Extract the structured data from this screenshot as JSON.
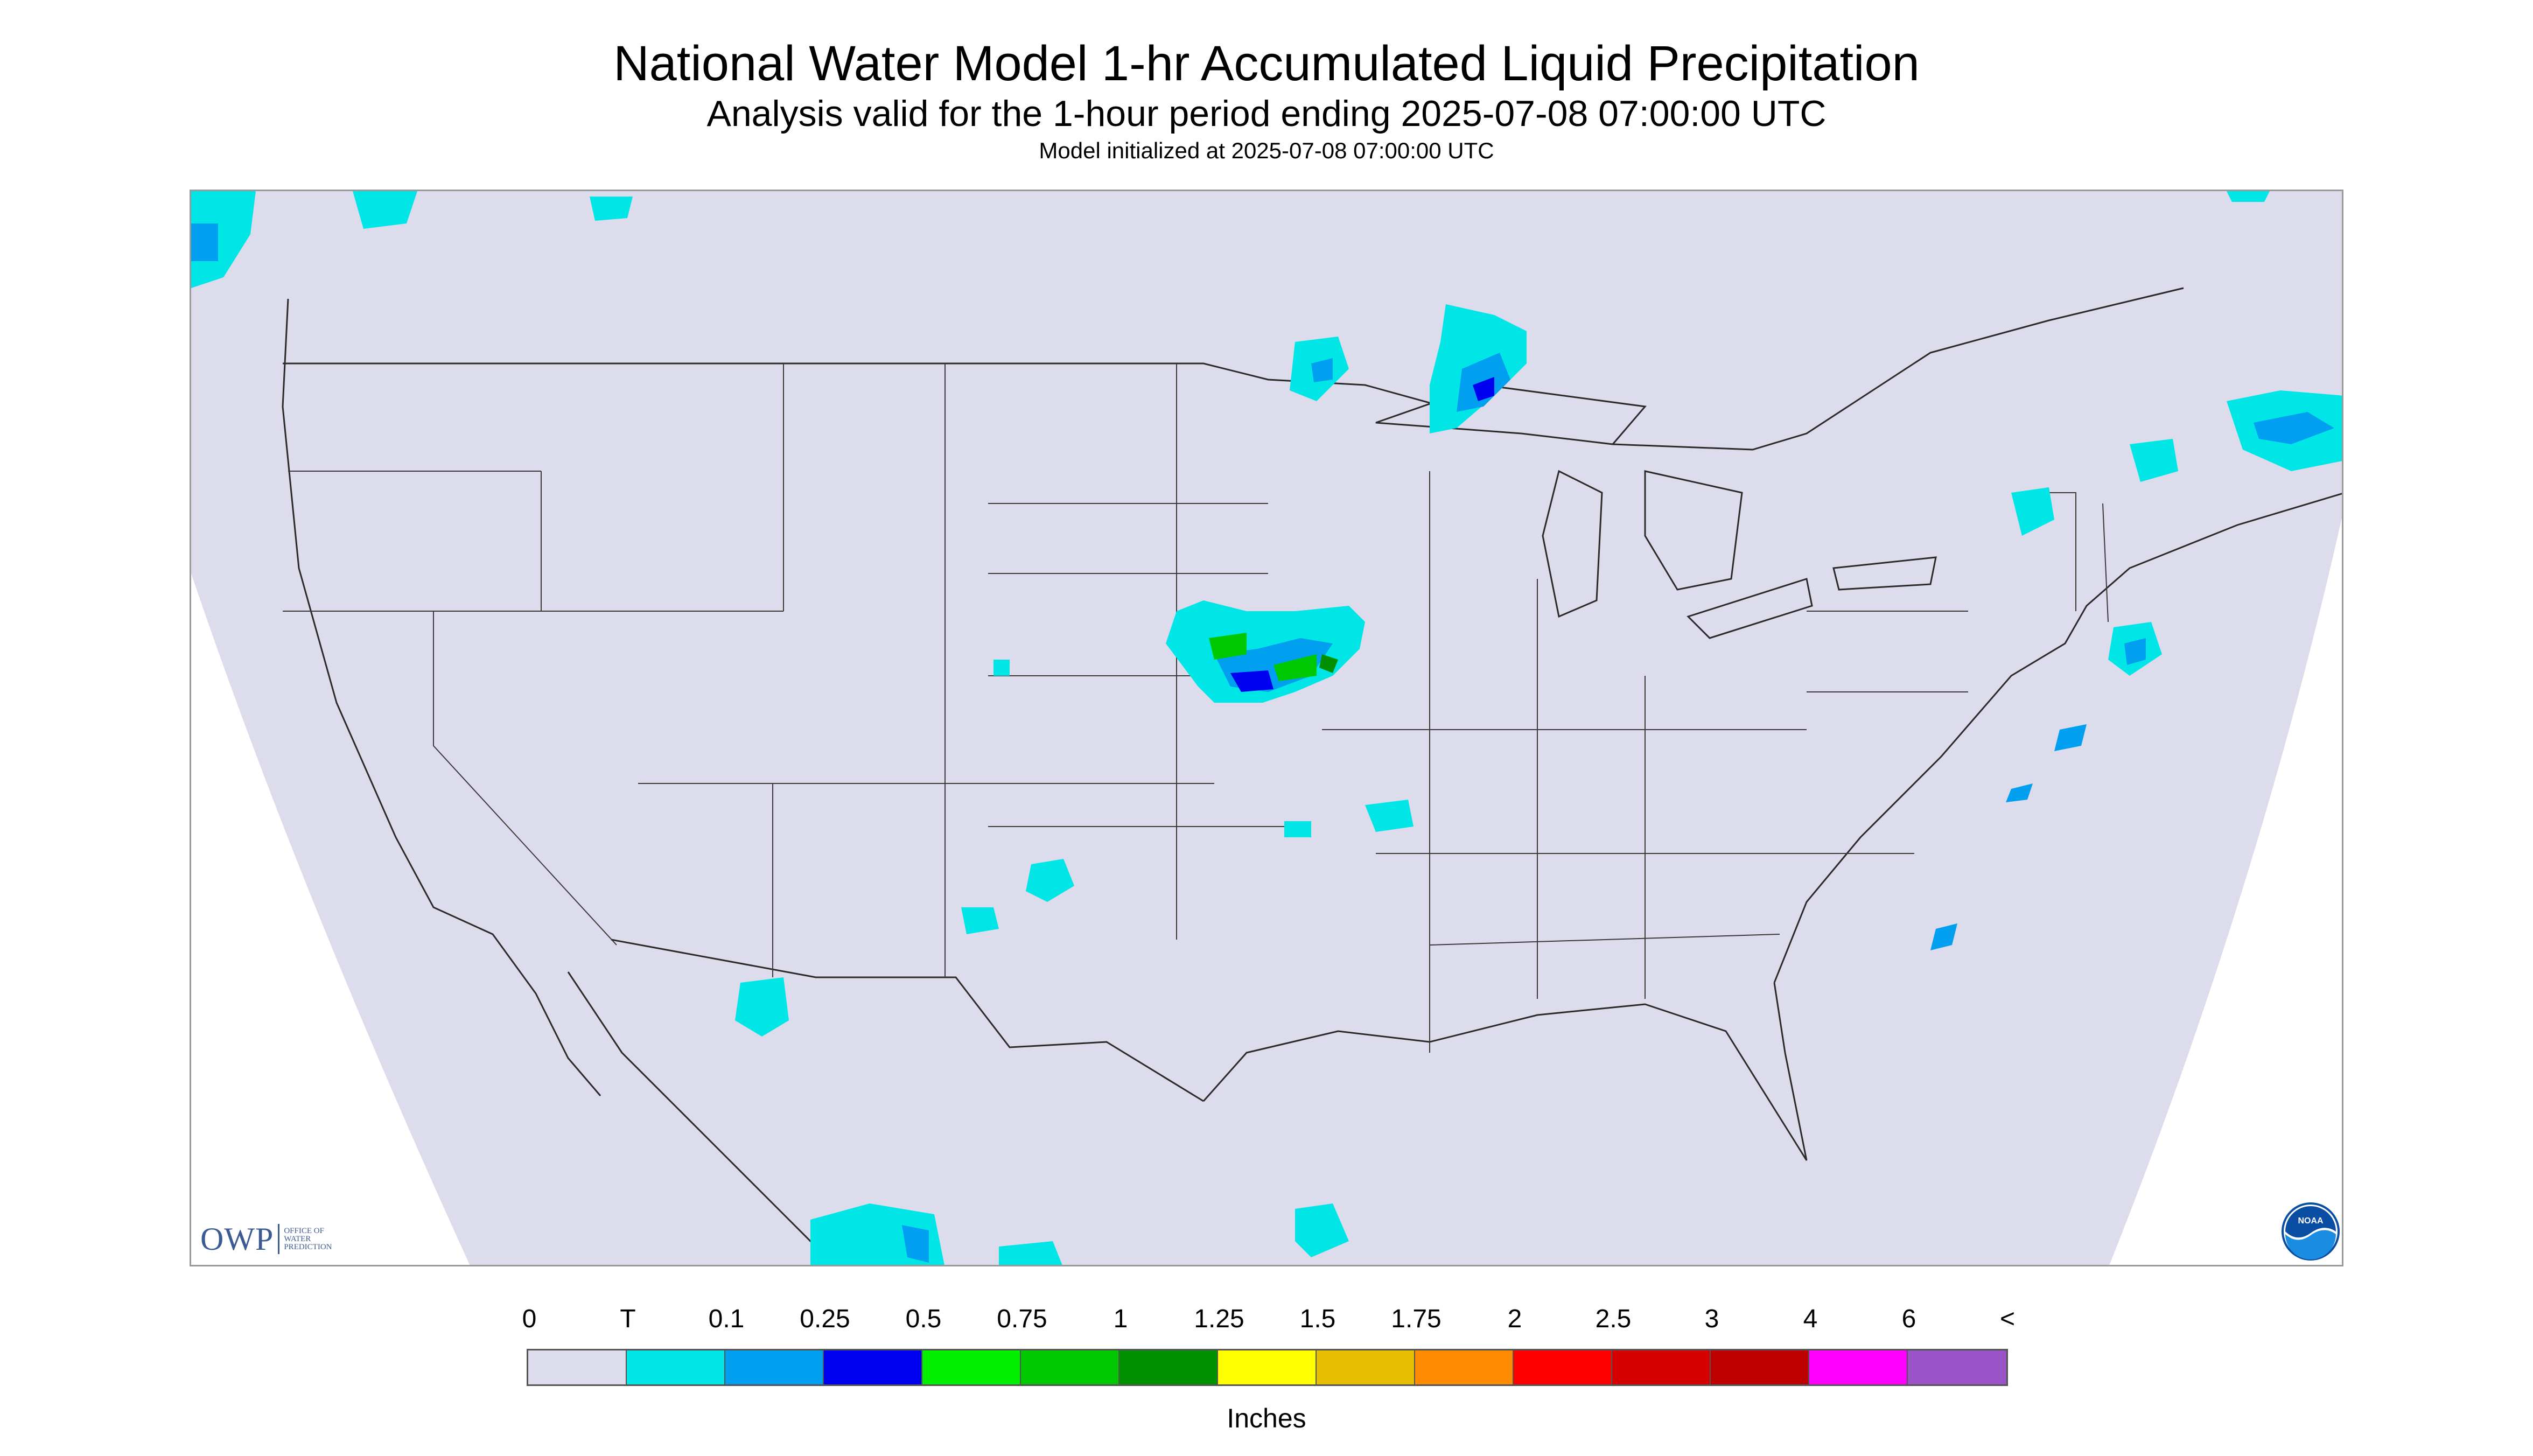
{
  "title": "National Water Model 1-hr Accumulated Liquid Precipitation",
  "subtitle": "Analysis valid for the 1-hour period ending 2025-07-08 07:00:00 UTC",
  "init_line": "Model initialized at 2025-07-08 07:00:00 UTC",
  "logo_owp": {
    "letters": "OWP",
    "line1": "OFFICE OF",
    "line2": "WATER",
    "line3": "PREDICTION"
  },
  "logo_noaa": "NOAA",
  "legend": {
    "labels": [
      "0",
      "T",
      "0.1",
      "0.25",
      "0.5",
      "0.75",
      "1",
      "1.25",
      "1.5",
      "1.75",
      "2",
      "2.5",
      "3",
      "4",
      "6",
      "<"
    ],
    "colors": [
      "#dcdcec",
      "#00e6e6",
      "#009ff0",
      "#0000f0",
      "#00f000",
      "#00c800",
      "#009000",
      "#ffff00",
      "#e6be00",
      "#ff8c00",
      "#ff0000",
      "#d60000",
      "#be0000",
      "#ff00ff",
      "#9a53c6"
    ],
    "units": "Inches"
  },
  "colors": {
    "domain_fill": "#dcdcec",
    "outside_domain": "#ffffff",
    "boundaries": "#2a2a2a"
  }
}
